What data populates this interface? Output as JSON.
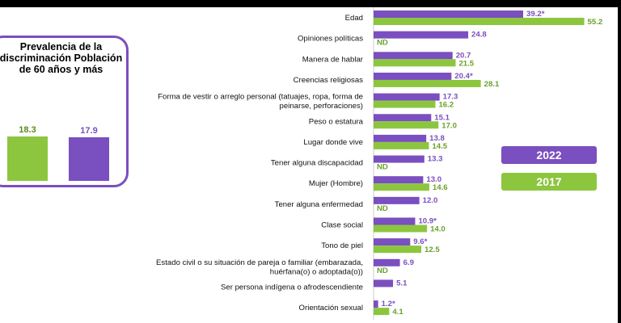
{
  "inset": {
    "title": "Prevalencia de la discriminación Población de 60 años y más",
    "values": [
      "18.3",
      "17.9"
    ],
    "fraction": [
      0.183,
      0.179
    ]
  },
  "legend": [
    "2022",
    "2017"
  ],
  "colors": {
    "s2022": "#7a4fbf",
    "s2017": "#8cc63f",
    "frame": "#7a4fbf"
  },
  "chart_data": {
    "type": "bar",
    "orientation": "horizontal",
    "categories": [
      [
        "Edad"
      ],
      [
        "Opiniones políticas"
      ],
      [
        "Manera de hablar"
      ],
      [
        "Creencias religiosas"
      ],
      [
        "Forma de vestir o arreglo personal (tatuajes, ropa, forma de",
        "peinarse, perforaciones)"
      ],
      [
        "Peso o estatura"
      ],
      [
        "Lugar donde vive"
      ],
      [
        "Tener alguna discapacidad"
      ],
      [
        "Mujer (Hombre)"
      ],
      [
        "Tener alguna enfermedad"
      ],
      [
        "Clase social"
      ],
      [
        "Tono de piel"
      ],
      [
        "Estado civil o su situación de pareja o familiar (embarazada,",
        "huérfana(o) o adoptada(o))"
      ],
      [
        "Ser persona indígena o afrodescendiente"
      ],
      [
        "Orientación sexual"
      ]
    ],
    "series": [
      {
        "name": "2022",
        "values": [
          39.2,
          24.8,
          20.7,
          20.4,
          17.3,
          15.1,
          13.8,
          13.3,
          13.0,
          12.0,
          10.9,
          9.6,
          6.9,
          5.1,
          1.2
        ],
        "labels": [
          "39.2*",
          "24.8",
          "20.7",
          "20.4*",
          "17.3",
          "15.1",
          "13.8",
          "13.3",
          "13.0",
          "12.0",
          "10.9*",
          "9.6*",
          "6.9",
          "5.1",
          "1.2*"
        ]
      },
      {
        "name": "2017",
        "values": [
          55.2,
          null,
          21.5,
          28.1,
          16.2,
          17.0,
          14.5,
          null,
          14.6,
          null,
          14.0,
          12.5,
          null,
          null,
          4.1
        ],
        "labels": [
          "55.2",
          "ND",
          "21.5",
          "28.1",
          "16.2",
          "17.0",
          "14.5",
          "ND",
          "14.6",
          "ND",
          "14.0",
          "12.5",
          "ND",
          "",
          "4.1"
        ]
      }
    ]
  }
}
